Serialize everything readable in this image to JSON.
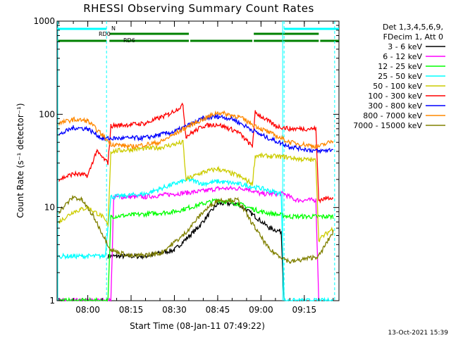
{
  "chart_data": {
    "type": "line",
    "title": "RHESSI Observing Summary Count Rates",
    "xlabel": "Start Time (08-Jan-11 07:49:22)",
    "ylabel": "Count Rate (s⁻¹ detector⁻¹)",
    "y_scale": "log",
    "ylim": [
      1,
      1000
    ],
    "xlim": [
      "07:49:22",
      "09:27:00"
    ],
    "x_ticks": [
      "08:00",
      "08:15",
      "08:30",
      "08:45",
      "09:00",
      "09:15"
    ],
    "y_ticks": [
      "1",
      "10",
      "100",
      "1000"
    ],
    "legend_header": [
      "Det 1,3,4,5,6,9,",
      "FDecim 1, Att 0"
    ],
    "legend_placement": "right",
    "footer_date": "13-Oct-2021 15:39",
    "flag_labels": {
      "n": "N",
      "rd0": "RD0",
      "rd6": "RD6"
    },
    "night_boundaries": [
      "08:06:30",
      "09:08:00",
      "09:25:30"
    ],
    "flag_bars": {
      "n": {
        "color": "#00ffff",
        "segments": [
          [
            "07:49:22",
            "08:06:30"
          ],
          [
            "09:08:00",
            "09:27:00"
          ]
        ]
      },
      "rd6": {
        "color": "#008000",
        "segments": [
          [
            "07:49:22",
            "08:06:30"
          ],
          [
            "08:07:30",
            "08:35:00"
          ],
          [
            "08:35:30",
            "08:57:00"
          ],
          [
            "08:57:30",
            "09:20:00"
          ],
          [
            "09:20:30",
            "09:27:00"
          ]
        ]
      },
      "rd6_upper": {
        "color": "#008000",
        "segments": [
          [
            "08:07:30",
            "08:35:00"
          ],
          [
            "08:57:30",
            "09:20:00"
          ]
        ]
      }
    },
    "series": [
      {
        "name": "3 - 6 keV",
        "color": "#000000",
        "points": [
          [
            "08:07",
            3.0
          ],
          [
            "08:10",
            3.0
          ],
          [
            "08:20",
            3.0
          ],
          [
            "08:30",
            3.5
          ],
          [
            "08:38",
            6.0
          ],
          [
            "08:45",
            11.0
          ],
          [
            "08:52",
            11.0
          ],
          [
            "08:58",
            8.0
          ],
          [
            "09:03",
            6.0
          ],
          [
            "09:07",
            5.5
          ],
          [
            "09:08",
            1.0
          ]
        ]
      },
      {
        "name": "6 - 12 keV",
        "color": "#ff00ff",
        "points": [
          [
            "07:50",
            1.0
          ],
          [
            "08:08",
            1.0
          ],
          [
            "08:09",
            13.0
          ],
          [
            "08:20",
            13.0
          ],
          [
            "08:30",
            14.0
          ],
          [
            "08:40",
            15.0
          ],
          [
            "08:45",
            16.0
          ],
          [
            "08:55",
            16.0
          ],
          [
            "09:00",
            14.0
          ],
          [
            "09:08",
            14.0
          ],
          [
            "09:12",
            12.0
          ],
          [
            "09:19",
            12.0
          ],
          [
            "09:20",
            1.0
          ]
        ]
      },
      {
        "name": "12 - 25 keV",
        "color": "#00ff00",
        "points": [
          [
            "07:50",
            1.0
          ],
          [
            "08:07",
            1.0
          ],
          [
            "08:08",
            8.0
          ],
          [
            "08:20",
            8.5
          ],
          [
            "08:30",
            9.0
          ],
          [
            "08:40",
            11.0
          ],
          [
            "08:45",
            12.0
          ],
          [
            "08:52",
            11.0
          ],
          [
            "09:00",
            9.0
          ],
          [
            "09:10",
            8.0
          ],
          [
            "09:20",
            8.0
          ],
          [
            "09:25",
            8.0
          ]
        ]
      },
      {
        "name": "25 - 50 keV",
        "color": "#00ffff",
        "points": [
          [
            "07:50",
            3.0
          ],
          [
            "07:58",
            3.0
          ],
          [
            "08:00",
            3.0
          ],
          [
            "08:06",
            3.0
          ],
          [
            "08:08",
            13.0
          ],
          [
            "08:20",
            14.0
          ],
          [
            "08:30",
            18.0
          ],
          [
            "08:35",
            20.0
          ],
          [
            "08:40",
            18.0
          ],
          [
            "08:45",
            19.0
          ],
          [
            "08:52",
            18.0
          ],
          [
            "09:00",
            16.0
          ],
          [
            "09:07",
            14.0
          ],
          [
            "09:08",
            1.0
          ],
          [
            "09:25",
            1.0
          ]
        ]
      },
      {
        "name": "50 - 100 keV",
        "color": "#cccc00",
        "points": [
          [
            "07:50",
            7.0
          ],
          [
            "07:55",
            9.0
          ],
          [
            "08:00",
            10.0
          ],
          [
            "08:05",
            8.0
          ],
          [
            "08:07",
            6.5
          ],
          [
            "08:08",
            40.0
          ],
          [
            "08:15",
            42.0
          ],
          [
            "08:25",
            44.0
          ],
          [
            "08:33",
            50.0
          ],
          [
            "08:34",
            20.0
          ],
          [
            "08:40",
            24.0
          ],
          [
            "08:45",
            26.0
          ],
          [
            "08:52",
            22.0
          ],
          [
            "08:57",
            18.0
          ],
          [
            "08:58",
            36.0
          ],
          [
            "09:08",
            35.0
          ],
          [
            "09:14",
            33.0
          ],
          [
            "09:19",
            32.0
          ],
          [
            "09:20",
            4.5
          ],
          [
            "09:25",
            6.0
          ]
        ]
      },
      {
        "name": "100 - 300 keV",
        "color": "#ff0000",
        "points": [
          [
            "07:50",
            20.0
          ],
          [
            "07:55",
            23.0
          ],
          [
            "08:00",
            22.0
          ],
          [
            "08:03",
            40.0
          ],
          [
            "08:07",
            30.0
          ],
          [
            "08:08",
            75.0
          ],
          [
            "08:20",
            80.0
          ],
          [
            "08:28",
            100.0
          ],
          [
            "08:33",
            125.0
          ],
          [
            "08:34",
            58.0
          ],
          [
            "08:40",
            75.0
          ],
          [
            "08:45",
            78.0
          ],
          [
            "08:52",
            65.0
          ],
          [
            "08:57",
            45.0
          ],
          [
            "08:58",
            105.0
          ],
          [
            "09:05",
            75.0
          ],
          [
            "09:10",
            70.0
          ],
          [
            "09:19",
            70.0
          ],
          [
            "09:20",
            12.0
          ],
          [
            "09:25",
            13.0
          ]
        ]
      },
      {
        "name": "300 - 800 keV",
        "color": "#0000ff",
        "points": [
          [
            "07:50",
            60.0
          ],
          [
            "07:55",
            72.0
          ],
          [
            "08:00",
            70.0
          ],
          [
            "08:05",
            55.0
          ],
          [
            "08:08",
            55.0
          ],
          [
            "08:20",
            56.0
          ],
          [
            "08:30",
            65.0
          ],
          [
            "08:40",
            90.0
          ],
          [
            "08:45",
            95.0
          ],
          [
            "08:50",
            90.0
          ],
          [
            "09:00",
            60.0
          ],
          [
            "09:10",
            45.0
          ],
          [
            "09:20",
            40.0
          ],
          [
            "09:25",
            42.0
          ]
        ]
      },
      {
        "name": "800 - 7000 keV",
        "color": "#ff8800",
        "points": [
          [
            "07:50",
            80.0
          ],
          [
            "07:55",
            88.0
          ],
          [
            "08:00",
            85.0
          ],
          [
            "08:05",
            60.0
          ],
          [
            "08:08",
            48.0
          ],
          [
            "08:15",
            45.0
          ],
          [
            "08:25",
            50.0
          ],
          [
            "08:35",
            75.0
          ],
          [
            "08:45",
            105.0
          ],
          [
            "08:52",
            95.0
          ],
          [
            "09:00",
            70.0
          ],
          [
            "09:10",
            50.0
          ],
          [
            "09:20",
            45.0
          ],
          [
            "09:25",
            52.0
          ]
        ]
      },
      {
        "name": "7000 - 15000 keV",
        "color": "#808000",
        "points": [
          [
            "07:50",
            9.0
          ],
          [
            "07:55",
            13.0
          ],
          [
            "07:58",
            12.0
          ],
          [
            "08:02",
            8.0
          ],
          [
            "08:08",
            3.5
          ],
          [
            "08:15",
            3.0
          ],
          [
            "08:25",
            3.2
          ],
          [
            "08:33",
            5.0
          ],
          [
            "08:40",
            9.0
          ],
          [
            "08:45",
            12.0
          ],
          [
            "08:52",
            12.0
          ],
          [
            "08:58",
            6.0
          ],
          [
            "09:03",
            3.5
          ],
          [
            "09:10",
            2.6
          ],
          [
            "09:20",
            3.0
          ],
          [
            "09:25",
            5.5
          ]
        ]
      }
    ]
  }
}
